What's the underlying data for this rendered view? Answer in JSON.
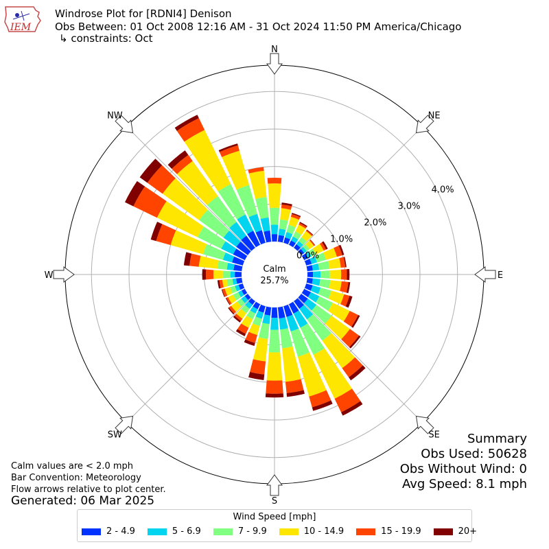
{
  "header": {
    "logo_text": "IEM",
    "title_line_1": "Windrose Plot for [RDNI4] Denison",
    "title_line_2": "Obs Between: 01 Oct 2008 12:16 AM - 31 Oct 2024 11:50 PM America/Chicago",
    "title_line_3": "↳ constraints: Oct"
  },
  "notes": {
    "calm_note": "Calm values are < 2.0 mph",
    "bar_convention": "Bar Convention: Meteorology",
    "flow_arrows": "Flow arrows relative to plot center.",
    "generated": "Generated: 06 Mar 2025"
  },
  "summary": {
    "title": "Summary",
    "obs_used": "Obs Used: 50628",
    "obs_without_wind": "Obs Without Wind: 0",
    "avg_speed": "Avg Speed: 8.1 mph"
  },
  "chart_data": {
    "type": "windrose",
    "title": "Windrose Plot for [RDNI4] Denison",
    "center_label": "Calm",
    "calm_percent": "25.7%",
    "compass_labels": [
      "N",
      "NE",
      "E",
      "SE",
      "S",
      "SW",
      "W",
      "NW"
    ],
    "radial_ticks": [
      "0.0%",
      "1.0%",
      "2.0%",
      "3.0%",
      "4.0%"
    ],
    "radial_range": [
      0,
      4.7
    ],
    "legend_title": "Wind Speed [mph]",
    "bins": [
      {
        "label": "2 - 4.9",
        "color": "#0033ff"
      },
      {
        "label": "5 - 6.9",
        "color": "#00d4ef"
      },
      {
        "label": "7 - 9.9",
        "color": "#80ff80"
      },
      {
        "label": "10 - 14.9",
        "color": "#ffe600"
      },
      {
        "label": "15 - 19.9",
        "color": "#ff4400"
      },
      {
        "label": "20+",
        "color": "#800000"
      }
    ],
    "directions_deg": [
      0,
      10,
      20,
      30,
      40,
      50,
      60,
      70,
      80,
      90,
      100,
      110,
      120,
      130,
      140,
      150,
      160,
      170,
      180,
      190,
      200,
      210,
      220,
      230,
      240,
      250,
      260,
      270,
      280,
      290,
      300,
      310,
      320,
      330,
      340,
      350
    ],
    "cumulative_percent": [
      [
        0.2,
        0.45,
        0.9,
        1.55,
        1.7,
        1.7
      ],
      [
        0.18,
        0.35,
        0.6,
        0.9,
        1.0,
        1.05
      ],
      [
        0.15,
        0.3,
        0.5,
        0.72,
        0.8,
        0.83
      ],
      [
        0.13,
        0.25,
        0.4,
        0.6,
        0.65,
        0.68
      ],
      [
        0.12,
        0.22,
        0.35,
        0.55,
        0.58,
        0.6
      ],
      [
        0.1,
        0.18,
        0.28,
        0.42,
        0.45,
        0.46
      ],
      [
        0.12,
        0.22,
        0.35,
        0.58,
        0.65,
        0.7
      ],
      [
        0.15,
        0.3,
        0.55,
        0.85,
        1.0,
        1.05
      ],
      [
        0.15,
        0.32,
        0.6,
        0.9,
        1.02,
        1.05
      ],
      [
        0.15,
        0.35,
        0.6,
        0.9,
        1.05,
        1.12
      ],
      [
        0.15,
        0.35,
        0.62,
        0.92,
        1.1,
        1.15
      ],
      [
        0.18,
        0.4,
        0.7,
        1.05,
        1.2,
        1.28
      ],
      [
        0.2,
        0.45,
        0.85,
        1.35,
        1.6,
        1.65
      ],
      [
        0.22,
        0.5,
        1.0,
        1.6,
        1.9,
        1.95
      ],
      [
        0.25,
        0.6,
        1.3,
        2.2,
        2.5,
        2.6
      ],
      [
        0.28,
        0.7,
        1.5,
        2.8,
        3.2,
        3.3
      ],
      [
        0.3,
        0.7,
        1.4,
        2.5,
        2.8,
        2.9
      ],
      [
        0.3,
        0.6,
        1.1,
        2.0,
        2.3,
        2.4
      ],
      [
        0.28,
        0.6,
        1.2,
        1.95,
        2.3,
        2.4
      ],
      [
        0.22,
        0.45,
        0.85,
        1.45,
        1.8,
        1.95
      ],
      [
        0.18,
        0.35,
        0.55,
        0.8,
        1.02,
        1.1
      ],
      [
        0.15,
        0.28,
        0.45,
        0.7,
        0.88,
        0.95
      ],
      [
        0.12,
        0.25,
        0.4,
        0.58,
        0.65,
        0.7
      ],
      [
        0.1,
        0.22,
        0.35,
        0.55,
        0.62,
        0.65
      ],
      [
        0.1,
        0.2,
        0.35,
        0.5,
        0.55,
        0.57
      ],
      [
        0.12,
        0.22,
        0.35,
        0.5,
        0.57,
        0.59
      ],
      [
        0.15,
        0.25,
        0.4,
        0.52,
        0.6,
        0.65
      ],
      [
        0.18,
        0.3,
        0.5,
        0.75,
        0.95,
        1.05
      ],
      [
        0.22,
        0.4,
        0.65,
        1.15,
        1.4,
        1.55
      ],
      [
        0.3,
        0.55,
        1.1,
        2.0,
        2.4,
        2.55
      ],
      [
        0.35,
        0.7,
        1.4,
        2.6,
        3.3,
        3.55
      ],
      [
        0.38,
        0.8,
        1.6,
        2.8,
        3.3,
        3.55
      ],
      [
        0.4,
        0.85,
        1.7,
        2.85,
        3.05,
        3.2
      ],
      [
        0.42,
        0.9,
        1.8,
        3.4,
        3.75,
        3.85
      ],
      [
        0.35,
        0.8,
        1.6,
        2.55,
        2.7,
        2.75
      ],
      [
        0.3,
        0.65,
        1.2,
        1.9,
        2.0,
        2.0
      ]
    ]
  }
}
